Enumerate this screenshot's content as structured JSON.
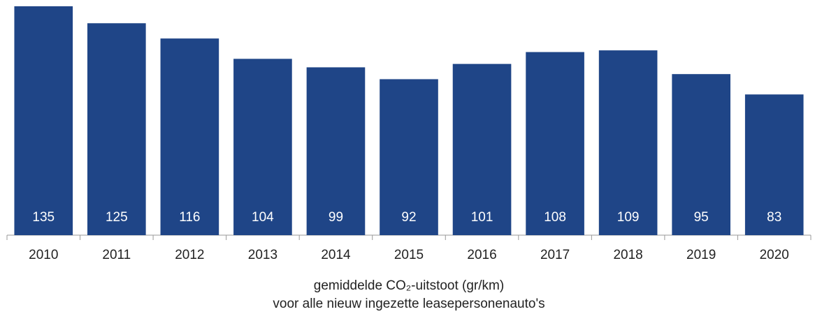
{
  "chart_data": {
    "type": "bar",
    "categories": [
      "2010",
      "2011",
      "2012",
      "2013",
      "2014",
      "2015",
      "2016",
      "2017",
      "2018",
      "2019",
      "2020"
    ],
    "values": [
      135,
      125,
      116,
      104,
      99,
      92,
      101,
      108,
      109,
      95,
      83
    ],
    "color": "#1f4587",
    "ylim": [
      0,
      135
    ],
    "x_label": [
      "gemiddelde CO₂-uitstoot (gr/km)",
      "voor alle nieuw ingezette leasepersonenauto's"
    ]
  }
}
